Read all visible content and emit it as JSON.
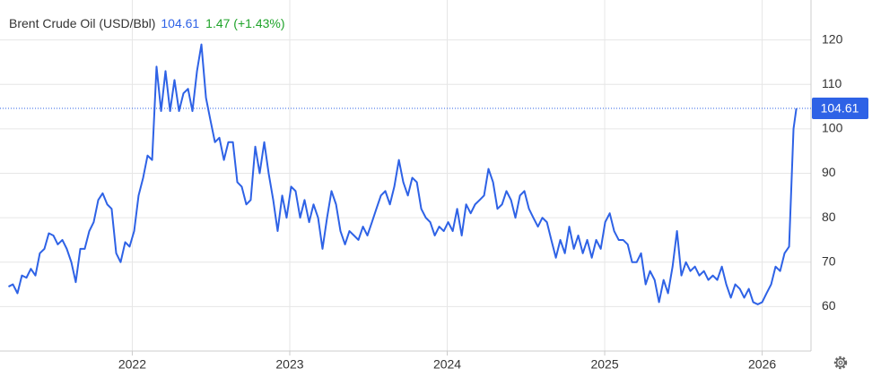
{
  "chart_data": {
    "type": "line",
    "title": "Brent Crude Oil (USD/Bbl)",
    "change": "1.47 (+1.43%)",
    "xlim": [
      2021.16,
      2026.31
    ],
    "ylim": [
      50,
      129
    ],
    "xticks": [
      2022,
      2023,
      2024,
      2025,
      2026
    ],
    "yticks": [
      60,
      70,
      80,
      90,
      100,
      110,
      120
    ],
    "grid": true,
    "series": [
      {
        "name": "Brent Crude Oil",
        "color": "#2e62e6",
        "x": [
          2021.214,
          2021.242,
          2021.271,
          2021.299,
          2021.328,
          2021.356,
          2021.385,
          2021.413,
          2021.442,
          2021.47,
          2021.499,
          2021.527,
          2021.556,
          2021.584,
          2021.613,
          2021.641,
          2021.67,
          2021.698,
          2021.727,
          2021.755,
          2021.784,
          2021.812,
          2021.841,
          2021.869,
          2021.898,
          2021.926,
          2021.955,
          2021.983,
          2022.012,
          2022.04,
          2022.069,
          2022.097,
          2022.126,
          2022.154,
          2022.183,
          2022.211,
          2022.24,
          2022.268,
          2022.297,
          2022.325,
          2022.354,
          2022.382,
          2022.411,
          2022.439,
          2022.468,
          2022.496,
          2022.525,
          2022.553,
          2022.582,
          2022.61,
          2022.639,
          2022.667,
          2022.695,
          2022.724,
          2022.752,
          2022.781,
          2022.809,
          2022.838,
          2022.866,
          2022.895,
          2022.923,
          2022.952,
          2022.98,
          2023.009,
          2023.037,
          2023.066,
          2023.094,
          2023.123,
          2023.151,
          2023.18,
          2023.208,
          2023.237,
          2023.265,
          2023.294,
          2023.322,
          2023.351,
          2023.379,
          2023.408,
          2023.436,
          2023.465,
          2023.493,
          2023.522,
          2023.55,
          2023.579,
          2023.607,
          2023.636,
          2023.664,
          2023.693,
          2023.721,
          2023.75,
          2023.778,
          2023.807,
          2023.835,
          2023.864,
          2023.892,
          2023.921,
          2023.949,
          2023.978,
          2024.006,
          2024.035,
          2024.063,
          2024.092,
          2024.12,
          2024.149,
          2024.177,
          2024.206,
          2024.234,
          2024.262,
          2024.291,
          2024.319,
          2024.348,
          2024.376,
          2024.405,
          2024.433,
          2024.462,
          2024.49,
          2024.519,
          2024.547,
          2024.576,
          2024.604,
          2024.633,
          2024.661,
          2024.69,
          2024.718,
          2024.747,
          2024.775,
          2024.804,
          2024.832,
          2024.861,
          2024.889,
          2024.918,
          2024.946,
          2024.975,
          2025.003,
          2025.032,
          2025.06,
          2025.089,
          2025.117,
          2025.146,
          2025.174,
          2025.203,
          2025.231,
          2025.26,
          2025.288,
          2025.317,
          2025.345,
          2025.374,
          2025.402,
          2025.431,
          2025.459,
          2025.487,
          2025.516,
          2025.544,
          2025.573,
          2025.601,
          2025.63,
          2025.658,
          2025.687,
          2025.715,
          2025.744,
          2025.772,
          2025.801,
          2025.829,
          2025.858,
          2025.886,
          2025.915,
          2025.943,
          2025.972,
          2026.0,
          2026.028,
          2026.057,
          2026.085,
          2026.114,
          2026.142,
          2026.171,
          2026.199,
          2026.217
        ],
        "values": [
          64.5,
          65,
          63,
          67,
          66.5,
          68.5,
          67,
          72,
          73,
          76.5,
          76,
          74,
          75,
          73,
          70,
          65.5,
          73,
          73,
          77,
          79,
          84,
          85.5,
          83,
          82,
          72,
          70,
          74.5,
          73.5,
          77,
          85,
          89,
          94,
          93,
          114,
          104,
          113,
          104,
          111,
          104,
          108,
          109,
          104,
          113,
          119,
          107,
          102,
          97,
          98,
          93,
          97,
          97,
          88,
          87,
          83,
          84,
          96,
          90,
          97,
          90,
          84,
          77,
          85,
          80,
          87,
          86,
          80,
          84,
          79,
          83,
          80,
          73,
          80,
          86,
          83,
          77,
          74,
          77,
          76,
          75,
          78,
          76,
          79,
          82,
          85,
          86,
          83,
          87,
          93,
          88,
          85,
          89,
          88,
          82,
          80,
          79,
          76,
          78,
          77,
          79,
          77,
          82,
          76,
          83,
          81,
          83,
          84,
          85,
          91,
          88,
          82,
          83,
          86,
          84,
          80,
          85,
          86,
          82,
          80,
          78,
          80,
          79,
          75,
          71,
          75,
          72,
          78,
          73,
          76,
          72,
          75,
          71,
          75,
          73,
          79,
          81,
          77,
          75,
          75,
          74,
          70,
          70,
          72,
          65,
          68,
          66,
          61,
          66,
          63,
          69,
          77,
          67,
          70,
          68,
          69,
          67,
          68,
          66,
          67,
          66,
          69,
          65,
          62,
          65,
          64,
          62,
          64,
          61,
          60.5,
          61,
          63,
          65,
          69,
          68,
          72,
          73.5,
          100,
          104.61
        ]
      }
    ]
  }
}
